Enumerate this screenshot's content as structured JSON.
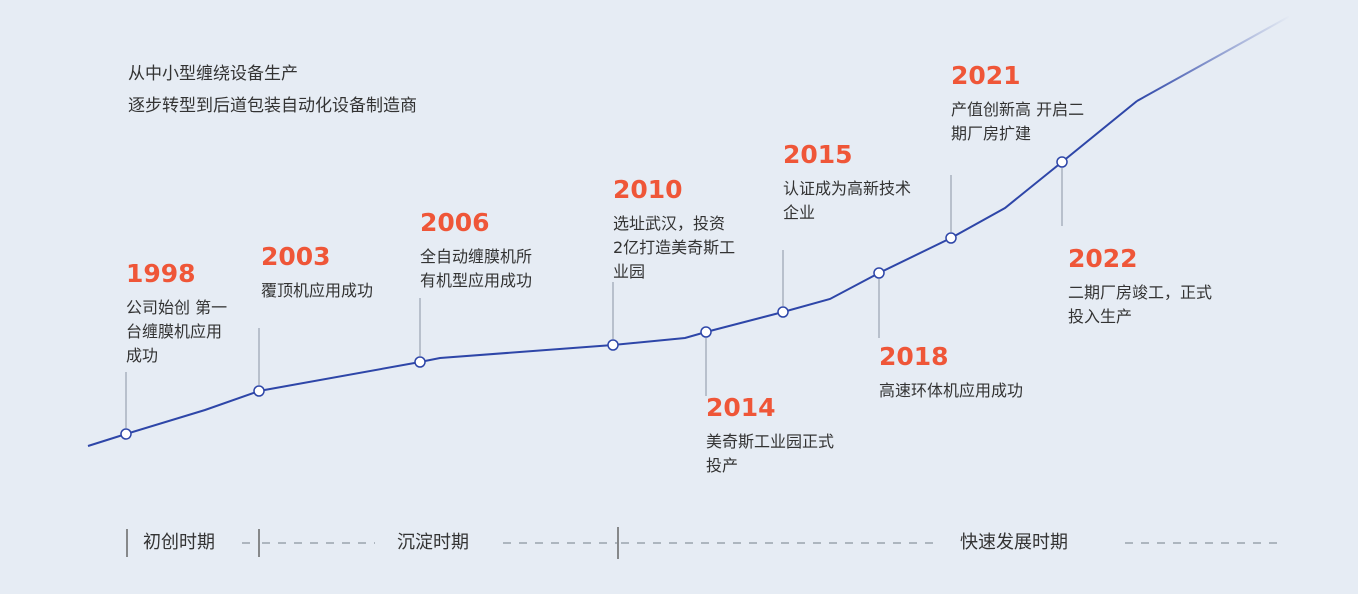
{
  "intro": {
    "line1": "从中小型缠绕设备生产",
    "line2": "逐步转型到后道包装自动化设备制造商"
  },
  "colors": {
    "line": "#2e46a8",
    "year": "#ef5638",
    "background": "#e6ecf4",
    "connector": "#a9b2bf"
  },
  "events": [
    {
      "year": "1998",
      "desc": "公司始创 第一\n台缠膜机应用\n成功"
    },
    {
      "year": "2003",
      "desc": "覆顶机应用成功"
    },
    {
      "year": "2006",
      "desc": "全自动缠膜机所\n有机型应用成功"
    },
    {
      "year": "2010",
      "desc": "选址武汉，投资\n2亿打造美奇斯工\n业园"
    },
    {
      "year": "2014",
      "desc": "美奇斯工业园正式\n投产"
    },
    {
      "year": "2015",
      "desc": "认证成为高新技术\n企业"
    },
    {
      "year": "2018",
      "desc": "高速环体机应用成功"
    },
    {
      "year": "2021",
      "desc": "产值创新高 开启二\n期厂房扩建"
    },
    {
      "year": "2022",
      "desc": "二期厂房竣工，正式\n投入生产"
    }
  ],
  "phases": [
    {
      "label": "初创时期"
    },
    {
      "label": "沉淀时期"
    },
    {
      "label": "快速发展时期"
    }
  ]
}
